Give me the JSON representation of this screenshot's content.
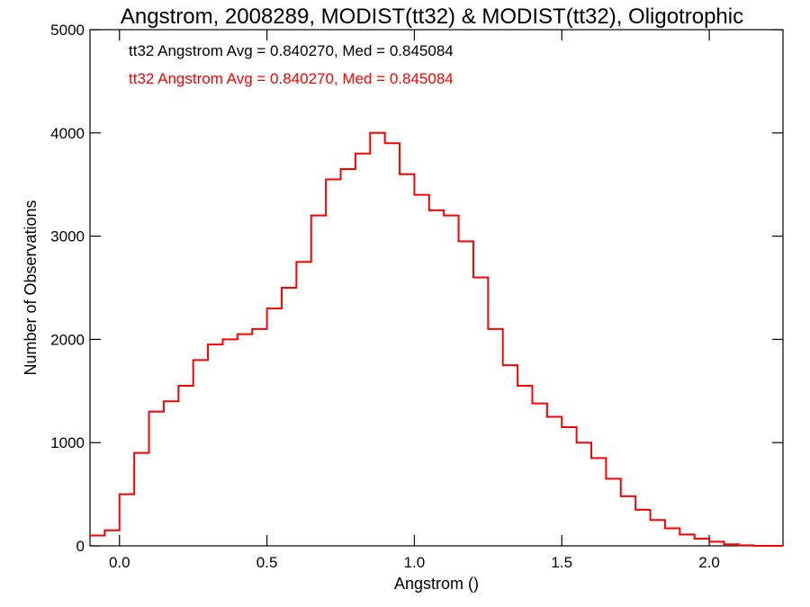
{
  "chart_data": {
    "type": "line",
    "title": "Angstrom, 2008289, MODIST(tt32) & MODIST(tt32), Oligotrophic",
    "xlabel": "Angstrom ()",
    "ylabel": "Number of Observations",
    "xlim": [
      -0.1,
      2.25
    ],
    "ylim": [
      0,
      5000
    ],
    "x_ticks": [
      0.0,
      0.5,
      1.0,
      1.5,
      2.0
    ],
    "x_tick_labels": [
      "0.0",
      "0.5",
      "1.0",
      "1.5",
      "2.0"
    ],
    "y_ticks": [
      0,
      1000,
      2000,
      3000,
      4000,
      5000
    ],
    "y_tick_labels": [
      "0",
      "1000",
      "2000",
      "3000",
      "4000",
      "5000"
    ],
    "annotations": [
      {
        "text": "tt32 Angstrom Avg = 0.840270, Med = 0.845084",
        "color": "#000000"
      },
      {
        "text": "tt32 Angstrom Avg = 0.840270, Med = 0.845084",
        "color": "#ff0000"
      }
    ],
    "series": [
      {
        "color": "#ff0000",
        "step": "histogram",
        "x": [
          -0.1,
          -0.05,
          0.0,
          0.05,
          0.1,
          0.15,
          0.2,
          0.25,
          0.3,
          0.35,
          0.4,
          0.45,
          0.5,
          0.55,
          0.6,
          0.65,
          0.7,
          0.75,
          0.8,
          0.85,
          0.9,
          0.95,
          1.0,
          1.05,
          1.1,
          1.15,
          1.2,
          1.25,
          1.3,
          1.35,
          1.4,
          1.45,
          1.5,
          1.55,
          1.6,
          1.65,
          1.7,
          1.75,
          1.8,
          1.85,
          1.9,
          1.95,
          2.0,
          2.05,
          2.1,
          2.15,
          2.2,
          2.25
        ],
        "y": [
          100,
          150,
          500,
          900,
          1300,
          1400,
          1550,
          1800,
          1950,
          2000,
          2050,
          2100,
          2300,
          2500,
          2750,
          3200,
          3550,
          3650,
          3800,
          4000,
          3900,
          3600,
          3400,
          3250,
          3200,
          2950,
          2600,
          2100,
          1750,
          1550,
          1380,
          1250,
          1150,
          1000,
          850,
          650,
          480,
          350,
          250,
          170,
          110,
          70,
          40,
          15,
          5,
          0,
          0,
          0
        ]
      }
    ]
  }
}
